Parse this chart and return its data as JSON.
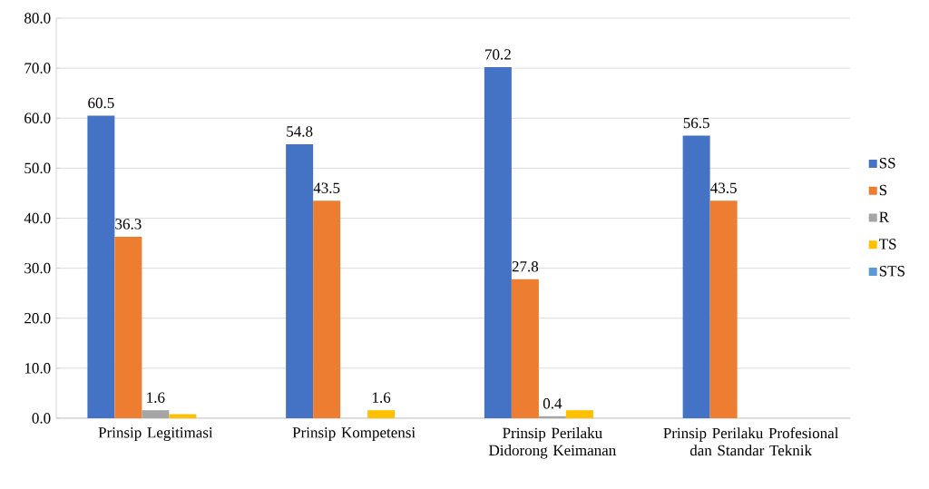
{
  "chart_data": {
    "type": "bar",
    "categories": [
      "Prinsip Legitimasi",
      "Prinsip Kompetensi",
      "Prinsip Perilaku Didorong Keimanan",
      "Prinsip Perilaku Profesional dan Standar Teknik"
    ],
    "series": [
      {
        "name": "SS",
        "color": "#4472c4",
        "values": [
          60.5,
          54.8,
          70.2,
          56.5
        ],
        "value_labels": [
          "60.5",
          "54.8",
          "70.2",
          "56.5"
        ]
      },
      {
        "name": "S",
        "color": "#ed7d31",
        "values": [
          36.3,
          43.5,
          27.8,
          43.5
        ],
        "value_labels": [
          "36.3",
          "43.5",
          "27.8",
          "43.5"
        ]
      },
      {
        "name": "R",
        "color": "#a5a5a5",
        "values": [
          1.6,
          null,
          0.4,
          null
        ],
        "value_labels": [
          "1.6",
          null,
          "0.4",
          null
        ]
      },
      {
        "name": "TS",
        "color": "#ffc000",
        "values": [
          0.8,
          1.6,
          1.6,
          null
        ],
        "value_labels": [
          null,
          "1.6",
          null,
          null
        ]
      },
      {
        "name": "STS",
        "color": "#5b9bd5",
        "values": [
          null,
          null,
          null,
          null
        ]
      }
    ],
    "ylim": [
      0,
      80
    ],
    "yticks": [
      {
        "value": 0,
        "label": "0.0"
      },
      {
        "value": 10,
        "label": "10.0"
      },
      {
        "value": 20,
        "label": "20.0"
      },
      {
        "value": 30,
        "label": "30.0"
      },
      {
        "value": 40,
        "label": "40.0"
      },
      {
        "value": 50,
        "label": "50.0"
      },
      {
        "value": 60,
        "label": "60.0"
      },
      {
        "value": 70,
        "label": "70.0"
      },
      {
        "value": 80,
        "label": "80.0"
      }
    ],
    "grid": "y",
    "legend": "right"
  }
}
